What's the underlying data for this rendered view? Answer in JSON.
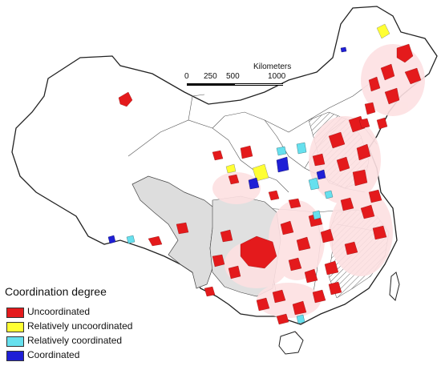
{
  "scale_bar": {
    "units": "Kilometers",
    "ticks": [
      "0",
      "250",
      "500",
      "1000"
    ]
  },
  "legend": {
    "title": "Coordination degree",
    "entries": [
      {
        "label": "Uncoordinated",
        "color": "#e41a1c"
      },
      {
        "label": "Relatively uncoordinated",
        "color": "#ffff33"
      },
      {
        "label": "Relatively coordinated",
        "color": "#66e0ee"
      },
      {
        "label": "Coordinated",
        "color": "#1f1fd6"
      }
    ]
  },
  "colors": {
    "region_fill": "#ffffff",
    "region_stroke": "#333333",
    "highlight_region": "#dddddd",
    "pink_halo": "#fde0e2",
    "hatch_line": "#444444"
  }
}
